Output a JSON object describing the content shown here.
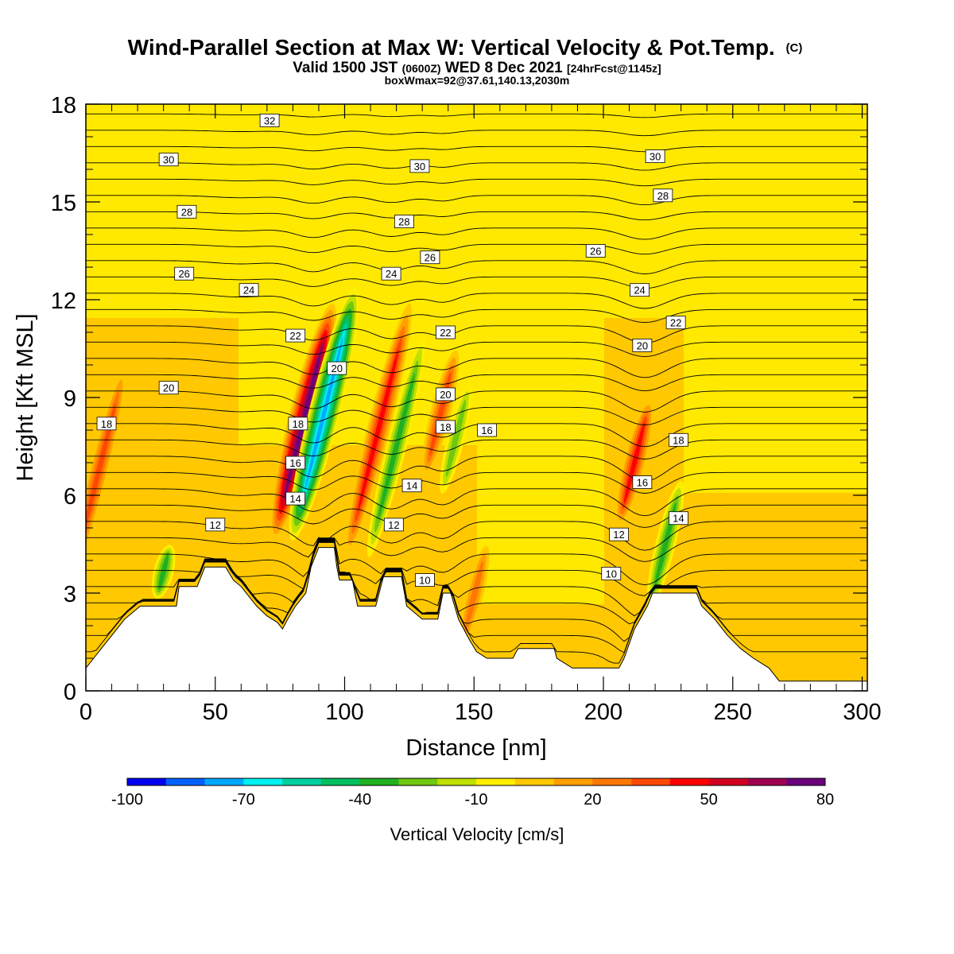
{
  "chart_data": {
    "type": "heatmap",
    "title": "Wind-Parallel Section at Max W: Vertical Velocity & Pot.Temp.",
    "title_mark": "(C)",
    "subtitle_main": "Valid 1500 JST",
    "subtitle_utc": "(0600Z)",
    "subtitle_date": "WED 8 Dec 2021",
    "subtitle_fcst": "[24hrFcst@1145z]",
    "subtitle2": "boxWmax=92@37.61,140.13,2030m",
    "xlabel": "Distance [nm]",
    "ylabel": "Height [Kft MSL]",
    "xlim": [
      0,
      302
    ],
    "ylim": [
      0,
      18
    ],
    "x_ticks": [
      "0",
      "50",
      "100",
      "150",
      "200",
      "250",
      "300"
    ],
    "y_ticks": [
      "0",
      "3",
      "6",
      "9",
      "12",
      "15",
      "18"
    ],
    "colorbar": {
      "label": "Vertical Velocity [cm/s]",
      "tick_labels": [
        "-100",
        "-70",
        "-40",
        "-10",
        "20",
        "50",
        "80"
      ],
      "tick_values": [
        -100,
        -70,
        -40,
        -10,
        20,
        50,
        80
      ],
      "bins": [
        -100,
        -90,
        -80,
        -70,
        -60,
        -50,
        -40,
        -30,
        -20,
        -10,
        0,
        10,
        20,
        30,
        40,
        50,
        60,
        70,
        80
      ],
      "colors": [
        "#0000f0",
        "#0060ff",
        "#00a8ff",
        "#00f0f0",
        "#00d0a0",
        "#00c060",
        "#20b020",
        "#70c810",
        "#c0e000",
        "#ffee00",
        "#ffc800",
        "#ffa000",
        "#ff7800",
        "#ff4800",
        "#ff0000",
        "#d00020",
        "#a00050",
        "#6a007a"
      ]
    },
    "background_value": 0,
    "vertical_velocity_features": [
      {
        "x": 5,
        "z_range": [
          3.5,
          10
        ],
        "value": 40
      },
      {
        "x": 84,
        "z_range": [
          4.5,
          12
        ],
        "value": 80
      },
      {
        "x": 92,
        "z_range": [
          4.5,
          12.5
        ],
        "value": -80
      },
      {
        "x": 113,
        "z_range": [
          4,
          12
        ],
        "value": 50
      },
      {
        "x": 120,
        "z_range": [
          4,
          11
        ],
        "value": -40
      },
      {
        "x": 137,
        "z_range": [
          6.5,
          10.5
        ],
        "value": 40
      },
      {
        "x": 143,
        "z_range": [
          6,
          9.5
        ],
        "value": -30
      },
      {
        "x": 212,
        "z_range": [
          5,
          9
        ],
        "value": 50
      },
      {
        "x": 224,
        "z_range": [
          2.5,
          6.5
        ],
        "value": -40
      },
      {
        "x": 30,
        "z_range": [
          2.8,
          4.5
        ],
        "value": -40
      },
      {
        "x": 150,
        "z_range": [
          1.3,
          4.5
        ],
        "value": 30
      }
    ],
    "theta_contours": [
      "10",
      "12",
      "14",
      "16",
      "18",
      "20",
      "22",
      "24",
      "26",
      "28",
      "30",
      "32"
    ],
    "theta_labels": [
      {
        "x": 8,
        "z": 8.2,
        "text": "18"
      },
      {
        "x": 32,
        "z": 9.3,
        "text": "20"
      },
      {
        "x": 50,
        "z": 5.1,
        "text": "12"
      },
      {
        "x": 63,
        "z": 12.3,
        "text": "24"
      },
      {
        "x": 38,
        "z": 12.8,
        "text": "26"
      },
      {
        "x": 39,
        "z": 14.7,
        "text": "28"
      },
      {
        "x": 32,
        "z": 16.3,
        "text": "30"
      },
      {
        "x": 71,
        "z": 17.5,
        "text": "32"
      },
      {
        "x": 81,
        "z": 10.9,
        "text": "22"
      },
      {
        "x": 97,
        "z": 9.9,
        "text": "20"
      },
      {
        "x": 82,
        "z": 8.2,
        "text": "18"
      },
      {
        "x": 81,
        "z": 7.0,
        "text": "16"
      },
      {
        "x": 81,
        "z": 5.9,
        "text": "14"
      },
      {
        "x": 118,
        "z": 12.8,
        "text": "24"
      },
      {
        "x": 123,
        "z": 14.4,
        "text": "28"
      },
      {
        "x": 129,
        "z": 16.1,
        "text": "30"
      },
      {
        "x": 133,
        "z": 13.3,
        "text": "26"
      },
      {
        "x": 139,
        "z": 11.0,
        "text": "22"
      },
      {
        "x": 139,
        "z": 9.1,
        "text": "20"
      },
      {
        "x": 139,
        "z": 8.1,
        "text": "18"
      },
      {
        "x": 155,
        "z": 8.0,
        "text": "16"
      },
      {
        "x": 126,
        "z": 6.3,
        "text": "14"
      },
      {
        "x": 119,
        "z": 5.1,
        "text": "12"
      },
      {
        "x": 131,
        "z": 3.4,
        "text": "10"
      },
      {
        "x": 197,
        "z": 13.5,
        "text": "26"
      },
      {
        "x": 214,
        "z": 12.3,
        "text": "24"
      },
      {
        "x": 215,
        "z": 10.6,
        "text": "20"
      },
      {
        "x": 228,
        "z": 11.3,
        "text": "22"
      },
      {
        "x": 215,
        "z": 6.4,
        "text": "16"
      },
      {
        "x": 206,
        "z": 4.8,
        "text": "12"
      },
      {
        "x": 203,
        "z": 3.6,
        "text": "10"
      },
      {
        "x": 229,
        "z": 5.3,
        "text": "14"
      },
      {
        "x": 229,
        "z": 7.7,
        "text": "18"
      },
      {
        "x": 220,
        "z": 16.4,
        "text": "30"
      },
      {
        "x": 223,
        "z": 15.2,
        "text": "28"
      }
    ],
    "terrain": [
      [
        0,
        0.7
      ],
      [
        3,
        1.0
      ],
      [
        6,
        1.3
      ],
      [
        9,
        1.6
      ],
      [
        12,
        1.9
      ],
      [
        15,
        2.2
      ],
      [
        18,
        2.4
      ],
      [
        21,
        2.6
      ],
      [
        35,
        2.6
      ],
      [
        36,
        3.2
      ],
      [
        43,
        3.2
      ],
      [
        46,
        3.8
      ],
      [
        54,
        3.8
      ],
      [
        57,
        3.4
      ],
      [
        60,
        3.2
      ],
      [
        64,
        2.8
      ],
      [
        66,
        2.6
      ],
      [
        70,
        2.3
      ],
      [
        74,
        2.1
      ],
      [
        76,
        1.9
      ],
      [
        78,
        2.2
      ],
      [
        81,
        2.6
      ],
      [
        85,
        3.0
      ],
      [
        87,
        3.8
      ],
      [
        90,
        4.4
      ],
      [
        96,
        4.4
      ],
      [
        97,
        3.8
      ],
      [
        98,
        3.4
      ],
      [
        103,
        3.4
      ],
      [
        105,
        2.6
      ],
      [
        112,
        2.6
      ],
      [
        115,
        3.5
      ],
      [
        122,
        3.5
      ],
      [
        124,
        2.6
      ],
      [
        130,
        2.2
      ],
      [
        136,
        2.2
      ],
      [
        138,
        3.0
      ],
      [
        141,
        3.0
      ],
      [
        144,
        2.2
      ],
      [
        148,
        1.6
      ],
      [
        151,
        1.2
      ],
      [
        155,
        1.0
      ],
      [
        165,
        1.0
      ],
      [
        167,
        1.3
      ],
      [
        181,
        1.3
      ],
      [
        182,
        1.0
      ],
      [
        188,
        0.7
      ],
      [
        206,
        0.7
      ],
      [
        208,
        1.0
      ],
      [
        212,
        1.9
      ],
      [
        217,
        2.6
      ],
      [
        219,
        3.0
      ],
      [
        236,
        3.0
      ],
      [
        238,
        2.6
      ],
      [
        243,
        2.2
      ],
      [
        248,
        1.7
      ],
      [
        253,
        1.3
      ],
      [
        258,
        1.0
      ],
      [
        264,
        0.7
      ],
      [
        268,
        0.3
      ],
      [
        302,
        0.3
      ]
    ]
  }
}
